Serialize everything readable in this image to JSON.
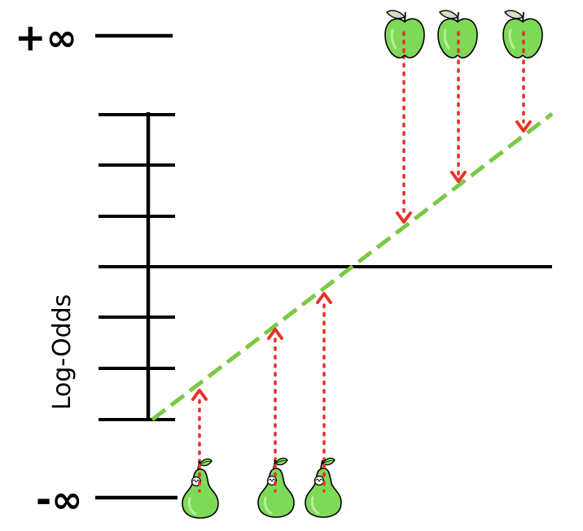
{
  "labels": {
    "pos_infinity": "+∞",
    "neg_infinity": "-∞",
    "axis_title": "Log-Odds"
  },
  "colors": {
    "axis": "#000000",
    "fit_line": "#7ac943",
    "projection": "#e8322b",
    "apple_body": "#7ed957",
    "pear_body": "#7ed957"
  },
  "icons": {
    "top_items": "apple-icon",
    "bottom_items": "pear-icon"
  },
  "counts": {
    "apples": 3,
    "pears": 3
  }
}
